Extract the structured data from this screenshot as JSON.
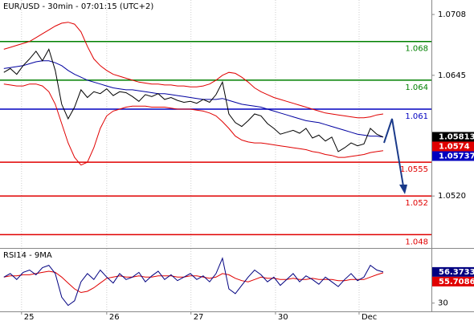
{
  "chart_data": [
    {
      "type": "line",
      "title": "EUR/USD - 30min - 07:01:15 (UTC+2)",
      "ylim": [
        1.0467,
        1.0723
      ],
      "yticks": [
        {
          "value": 1.052,
          "label": "1.0520"
        },
        1.0645,
        1.0708
      ],
      "series": [
        {
          "color": "#e00000",
          "values": [
            1.0672,
            1.0674,
            1.0676,
            1.0678,
            1.068,
            1.0684,
            1.0688,
            1.0692,
            1.0696,
            1.0699,
            1.07,
            1.0698,
            1.069,
            1.0675,
            1.0662,
            1.0655,
            1.065,
            1.0646,
            1.0644,
            1.0642,
            1.064,
            1.0638,
            1.0637,
            1.0636,
            1.0636,
            1.0635,
            1.0635,
            1.0634,
            1.0634,
            1.0633,
            1.0633,
            1.0634,
            1.0636,
            1.064,
            1.0645,
            1.0648,
            1.0647,
            1.0643,
            1.0638,
            1.0632,
            1.0628,
            1.0625,
            1.0622,
            1.062,
            1.0618,
            1.0616,
            1.0614,
            1.0612,
            1.061,
            1.0608,
            1.0606,
            1.0605,
            1.0604,
            1.0603,
            1.0602,
            1.0601,
            1.0601,
            1.0602,
            1.0604,
            1.0605
          ]
        },
        {
          "color": "#e00000",
          "values": [
            1.0636,
            1.0635,
            1.0634,
            1.0634,
            1.0636,
            1.0636,
            1.0634,
            1.0628,
            1.0615,
            1.0595,
            1.0575,
            1.056,
            1.0552,
            1.0555,
            1.057,
            1.059,
            1.0603,
            1.0608,
            1.061,
            1.0612,
            1.0613,
            1.0613,
            1.0613,
            1.0612,
            1.0612,
            1.0612,
            1.0611,
            1.061,
            1.061,
            1.061,
            1.0609,
            1.0608,
            1.0606,
            1.0603,
            1.0597,
            1.059,
            1.0582,
            1.0578,
            1.0576,
            1.0575,
            1.0575,
            1.0574,
            1.0573,
            1.0572,
            1.0571,
            1.057,
            1.0569,
            1.0568,
            1.0566,
            1.0565,
            1.0563,
            1.0562,
            1.056,
            1.056,
            1.0561,
            1.0562,
            1.0563,
            1.0565,
            1.0566,
            1.0567
          ]
        },
        {
          "color": "#0000a0",
          "values": [
            1.0652,
            1.0653,
            1.0654,
            1.0655,
            1.0657,
            1.0659,
            1.066,
            1.066,
            1.0658,
            1.0655,
            1.065,
            1.0646,
            1.0643,
            1.064,
            1.0638,
            1.0636,
            1.0634,
            1.0632,
            1.0631,
            1.063,
            1.063,
            1.0629,
            1.0628,
            1.0627,
            1.0626,
            1.0626,
            1.0625,
            1.0624,
            1.0623,
            1.0622,
            1.0621,
            1.062,
            1.062,
            1.062,
            1.0621,
            1.0619,
            1.0617,
            1.0615,
            1.0614,
            1.0613,
            1.0612,
            1.061,
            1.0608,
            1.0606,
            1.0604,
            1.0602,
            1.06,
            1.0598,
            1.0597,
            1.0596,
            1.0594,
            1.0592,
            1.059,
            1.0588,
            1.0586,
            1.0584,
            1.0583,
            1.0582,
            1.0582,
            1.0581
          ]
        },
        {
          "color": "#000000",
          "values": [
            1.0648,
            1.0652,
            1.0646,
            1.0655,
            1.0662,
            1.067,
            1.066,
            1.0672,
            1.065,
            1.0615,
            1.06,
            1.0612,
            1.063,
            1.0622,
            1.0628,
            1.0626,
            1.0631,
            1.0624,
            1.0628,
            1.0627,
            1.0623,
            1.0618,
            1.0625,
            1.0623,
            1.0626,
            1.062,
            1.0622,
            1.0619,
            1.0617,
            1.0618,
            1.0616,
            1.062,
            1.0617,
            1.0625,
            1.0638,
            1.0605,
            1.0596,
            1.0592,
            1.0598,
            1.0605,
            1.0603,
            1.0595,
            1.059,
            1.0584,
            1.0586,
            1.0588,
            1.0585,
            1.059,
            1.058,
            1.0583,
            1.0577,
            1.0581,
            1.0566,
            1.057,
            1.0575,
            1.0572,
            1.0574,
            1.059,
            1.0584,
            1.0581
          ]
        }
      ],
      "levels": [
        {
          "value": 1.068,
          "color": "#008000"
        },
        {
          "value": 1.064,
          "color": "#008000"
        },
        {
          "value": 1.061,
          "color": "#0000c0"
        },
        {
          "value": 1.0555,
          "color": "#e00000"
        },
        {
          "value": 1.052,
          "color": "#e00000"
        },
        {
          "value": 1.048,
          "color": "#e00000"
        }
      ],
      "price_tags": [
        {
          "value": 1.05813,
          "color": "#000000"
        },
        {
          "value": 1.0574,
          "color": "#e00000"
        },
        {
          "value": 1.05737,
          "color": "#0000c0"
        }
      ]
    },
    {
      "type": "line",
      "title": "RSI14 - 9MA",
      "ylim": [
        23,
        76
      ],
      "yticks": [
        30
      ],
      "xlim": [
        -0.6,
        66.5
      ],
      "xticks": [
        {
          "value": 2.75,
          "label": "25"
        },
        {
          "value": 16,
          "label": "26"
        },
        {
          "value": 29.1,
          "label": "27"
        },
        {
          "value": 42.25,
          "label": "30"
        },
        {
          "value": 55.25,
          "label": "Dec"
        }
      ],
      "series": [
        {
          "color": "#e00000",
          "values": [
            52,
            53,
            53,
            54,
            54,
            55,
            56,
            57,
            56,
            52,
            47,
            42,
            39,
            40,
            43,
            47,
            51,
            52,
            53,
            52,
            52,
            53,
            52,
            52,
            53,
            53,
            53,
            52,
            52,
            53,
            53,
            52,
            51,
            52,
            55,
            54,
            51,
            49,
            48,
            50,
            52,
            51,
            51,
            50,
            50,
            51,
            50,
            50,
            51,
            50,
            50,
            50,
            49,
            49,
            50,
            50,
            50,
            52,
            54,
            55.7
          ]
        },
        {
          "color": "#000080",
          "values": [
            52,
            55,
            50,
            56,
            58,
            54,
            60,
            62,
            55,
            35,
            28,
            32,
            48,
            55,
            50,
            58,
            52,
            47,
            55,
            50,
            52,
            56,
            48,
            53,
            57,
            50,
            54,
            49,
            52,
            55,
            50,
            53,
            48,
            55,
            68,
            42,
            38,
            45,
            52,
            58,
            54,
            48,
            52,
            45,
            50,
            55,
            48,
            53,
            50,
            46,
            52,
            48,
            44,
            50,
            55,
            49,
            52,
            62,
            58,
            56.37
          ]
        }
      ],
      "price_tags": [
        {
          "value": 56.3733,
          "color": "#000080"
        },
        {
          "value": 55.7086,
          "color": "#e00000"
        }
      ]
    }
  ]
}
